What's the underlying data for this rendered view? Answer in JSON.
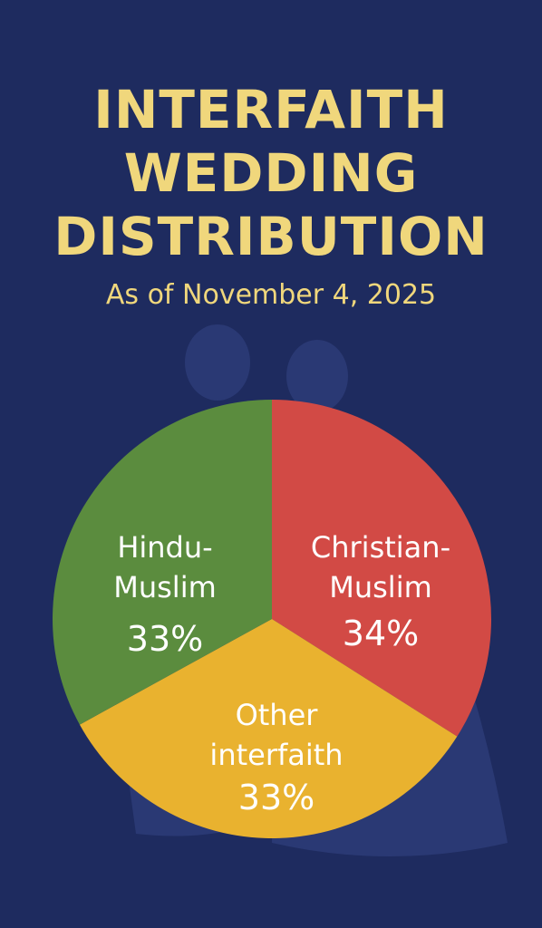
{
  "title_lines": [
    "INTERFAITH",
    "WEDDING",
    "DISTRIBUTION"
  ],
  "subtitle": "As of November 4, 2025",
  "colors": {
    "background": "#1e2b5f",
    "title": "#f0d77c",
    "label": "#ffffff"
  },
  "chart_data": {
    "type": "pie",
    "title": "INTERFAITH WEDDING DISTRIBUTION",
    "subtitle": "As of November 4, 2025",
    "slices": [
      {
        "label_lines": [
          "Hindu-",
          "Muslim"
        ],
        "value": 33,
        "value_label": "33%",
        "color": "#5b8c3e"
      },
      {
        "label_lines": [
          "Christian-",
          "Muslim"
        ],
        "value": 34,
        "value_label": "34%",
        "color": "#d24a45"
      },
      {
        "label_lines": [
          "Other",
          "interfaith"
        ],
        "value": 33,
        "value_label": "33%",
        "color": "#e9b22f"
      }
    ]
  }
}
